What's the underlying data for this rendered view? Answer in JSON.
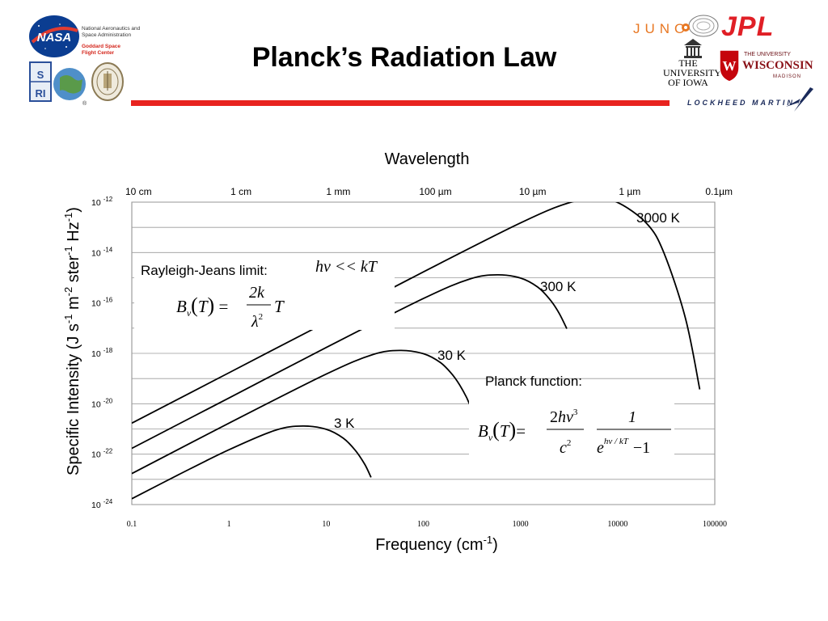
{
  "slide": {
    "title": "Planck’s Radiation Law",
    "accent_color": "#e8231f"
  },
  "logos": {
    "nasa": {
      "badge": "NASA",
      "lines": [
        "National Aeronautics and",
        "Space Administration"
      ],
      "center_lines": [
        "Goddard Space",
        "Flight Center"
      ]
    },
    "swri": {
      "badge": "SwRI",
      "mark": "®"
    },
    "jhu_apl": {
      "icon": "seal-icon"
    },
    "juno": {
      "word": "JUNO"
    },
    "jpl": {
      "word": "JPL"
    },
    "iowa": {
      "lines": [
        "THE",
        "UNIVERSITY",
        "OF IOWA"
      ]
    },
    "wisconsin": {
      "small": "THE UNIVERSITY",
      "word": "WISCONSIN",
      "sub": "MADISON"
    },
    "lockheed": {
      "word": "LOCKHEED MARTIN"
    }
  },
  "chart_data": {
    "type": "line",
    "title": "Wavelength",
    "xlabel": "Frequency (cm-1)",
    "xlabel_base": "Frequency (cm",
    "xlabel_sup": "-1",
    "xlabel_end": ")",
    "ylabel_parts": [
      {
        "t": "Specific Intensity (J s"
      },
      {
        "t": "-1",
        "sup": true
      },
      {
        "t": " m"
      },
      {
        "t": "-2",
        "sup": true
      },
      {
        "t": " ster"
      },
      {
        "t": "-1",
        "sup": true
      },
      {
        "t": " Hz"
      },
      {
        "t": "-1",
        "sup": true
      },
      {
        "t": ")"
      }
    ],
    "x_scale": "log",
    "y_scale": "log",
    "xlim": [
      0.1,
      100000
    ],
    "ylim": [
      1e-24,
      1e-12
    ],
    "x_ticks": [
      {
        "v": 0.1,
        "label": "0.1"
      },
      {
        "v": 1,
        "label": "1"
      },
      {
        "v": 10,
        "label": "10"
      },
      {
        "v": 100,
        "label": "100"
      },
      {
        "v": 1000,
        "label": "1000"
      },
      {
        "v": 10000,
        "label": "10000"
      },
      {
        "v": 100000,
        "label": "100000"
      }
    ],
    "y_ticks": [
      {
        "v": 1e-12,
        "base": "10",
        "exp": "-12"
      },
      {
        "v": 1e-14,
        "base": "10",
        "exp": "-14"
      },
      {
        "v": 1e-16,
        "base": "10",
        "exp": "-16"
      },
      {
        "v": 1e-18,
        "base": "10",
        "exp": "-18"
      },
      {
        "v": 1e-20,
        "base": "10",
        "exp": "-20"
      },
      {
        "v": 1e-22,
        "base": "10",
        "exp": "-22"
      },
      {
        "v": 1e-24,
        "base": "10",
        "exp": "-24"
      }
    ],
    "wavelength_ticks": [
      {
        "v": 0.1,
        "label": "10 cm"
      },
      {
        "v": 1,
        "label": "1 cm"
      },
      {
        "v": 10,
        "label": "1 mm"
      },
      {
        "v": 100,
        "label": "100 µm"
      },
      {
        "v": 1000,
        "label": "10 µm"
      },
      {
        "v": 10000,
        "label": "1 µm"
      },
      {
        "v": 100000,
        "label": "0.1µm"
      }
    ],
    "grid": {
      "horizontal": true,
      "vertical": false
    },
    "series": [
      {
        "name": "3 K",
        "temperature_K": 3,
        "x": [
          0.1,
          0.3,
          1,
          3,
          5.8,
          10,
          15,
          20,
          25,
          29
        ],
        "y": [
          1.7e-24,
          1.5e-23,
          1.5e-22,
          8.9e-22,
          1.3e-21,
          9.7e-22,
          4.3e-22,
          1.4e-22,
          3.9e-23,
          1.2e-23
        ]
      },
      {
        "name": "30 K",
        "temperature_K": 30,
        "x": [
          0.1,
          1,
          10,
          30,
          58,
          100,
          150,
          200,
          250,
          300,
          400,
          460
        ],
        "y": [
          1.7e-23,
          1.7e-21,
          1.5e-19,
          8.9e-19,
          1.3e-18,
          9.7e-19,
          4.3e-19,
          1.4e-19,
          3.9e-20,
          9.5e-21,
          4.1e-22,
          6.1e-23
        ]
      },
      {
        "name": "300 K",
        "temperature_K": 300,
        "x": [
          0.1,
          1,
          10,
          100,
          300,
          580,
          1000,
          1500,
          2000,
          2500,
          3000
        ],
        "y": [
          1.7e-22,
          1.7e-20,
          1.7e-18,
          1.5e-16,
          8.9e-16,
          1.3e-15,
          9.7e-16,
          4.3e-16,
          1.4e-16,
          3.9e-17,
          9.5e-18
        ]
      },
      {
        "name": "3000 K",
        "temperature_K": 3000,
        "x": [
          0.1,
          1,
          10,
          100,
          1000,
          3000,
          5800,
          10000,
          20000,
          30000,
          50000,
          70000
        ],
        "y": [
          1.7e-21,
          1.7e-19,
          1.7e-17,
          1.7e-15,
          1.5e-13,
          8.9e-13,
          1.3e-12,
          9.7e-13,
          1.4e-13,
          9.5e-15,
          2.4e-17,
          3.7e-20
        ]
      }
    ],
    "curve_labels": [
      "3000 K",
      "300 K",
      "30 K",
      "3 K"
    ],
    "annotations": {
      "rayleigh_jeans": {
        "label": "Rayleigh-Jeans limit:",
        "condition": "hν << kT",
        "formula": "Bν(T) = (2k/λ²) T"
      },
      "planck": {
        "label": "Planck function:",
        "formula": "Bν(T) = (2hν³/c²) · 1/(e^(hν/kT) − 1)"
      }
    }
  }
}
